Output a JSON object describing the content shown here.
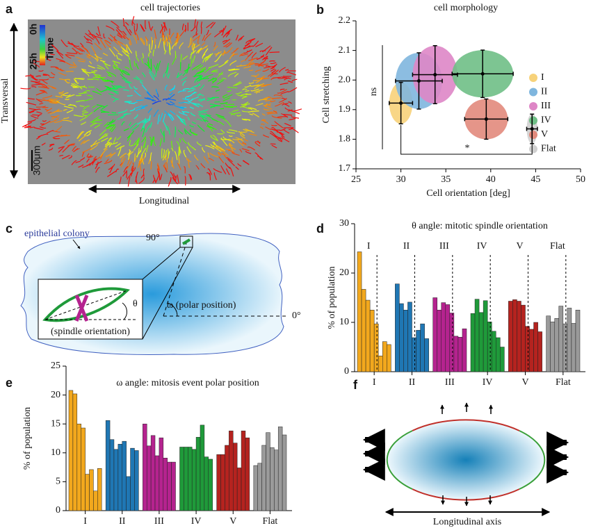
{
  "panel_a": {
    "panel": "a",
    "title": "cell trajectories",
    "y_label": "Transversal",
    "x_label": "Longitudinal",
    "colorbar_start": "0h",
    "colorbar_label": "Time",
    "colorbar_end": "25h",
    "scale_bar": "300μm"
  },
  "panel_c": {
    "panel": "c",
    "colony": "epithelial colony",
    "angle_90": "90°",
    "angle_0": "0°",
    "theta": "θ",
    "omega": "ω (polar position)",
    "spindle": "(spindle orientation)"
  },
  "panel_f": {
    "panel": "f",
    "axis_label": "Longitudinal axis"
  },
  "chart_data": [
    {
      "type": "scatter",
      "panel": "b",
      "title": "cell morphology",
      "x_label": "Cell orientation [deg]",
      "y_label": "Cell stretching",
      "xlim": [
        25,
        50
      ],
      "xticks": [
        25,
        30,
        35,
        40,
        45,
        50
      ],
      "ylim": [
        1.7,
        2.2
      ],
      "yticks": [
        1.7,
        1.8,
        1.9,
        {
          "value": 2,
          "label": "2.0"
        },
        2.1,
        2.2
      ],
      "annotations": [
        "ns",
        "*"
      ],
      "series": [
        {
          "name": "I",
          "color": "#f7d27a",
          "x": [
            30
          ],
          "y": [
            1.922
          ],
          "xerr": [
            1.3
          ],
          "yerr": [
            0.07
          ]
        },
        {
          "name": "II",
          "color": "#7fb6de",
          "x": [
            32
          ],
          "y": [
            1.997
          ],
          "xerr": [
            2.6
          ],
          "yerr": [
            0.095
          ]
        },
        {
          "name": "III",
          "color": "#de86c6",
          "x": [
            33.8
          ],
          "y": [
            2.018
          ],
          "xerr": [
            2.5
          ],
          "yerr": [
            0.098
          ]
        },
        {
          "name": "IV",
          "color": "#6fbf86",
          "x": [
            39.1
          ],
          "y": [
            2.021
          ],
          "xerr": [
            3.4
          ],
          "yerr": [
            0.08
          ]
        },
        {
          "name": "V",
          "color": "#e28a7c",
          "x": [
            39.5
          ],
          "y": [
            1.868
          ],
          "xerr": [
            2.4
          ],
          "yerr": [
            0.068
          ]
        },
        {
          "name": "Flat",
          "color": "#d0d0d0",
          "x": [
            44.6
          ],
          "y": [
            1.835
          ],
          "xerr": [
            0.6
          ],
          "yerr": [
            0.05
          ]
        }
      ]
    },
    {
      "type": "bar",
      "panel": "d",
      "title": "θ angle: mitotic spindle orientation",
      "y_label": "% of population",
      "ylim": [
        0,
        30
      ],
      "yticks": [
        0,
        10,
        20,
        30
      ],
      "groups": [
        {
          "name": "I",
          "color": "#f2a81d",
          "values": [
            24.3,
            16.7,
            14.5,
            12.5,
            9.7,
            3.2,
            6.1,
            5.5
          ]
        },
        {
          "name": "II",
          "color": "#1f77b4",
          "values": [
            17.8,
            13.8,
            12.5,
            14.1,
            6.9,
            8.4,
            9.7,
            6.7
          ]
        },
        {
          "name": "III",
          "color": "#b5238f",
          "values": [
            15.0,
            12.5,
            14.0,
            13.6,
            11.9,
            7.2,
            7.0,
            8.7
          ]
        },
        {
          "name": "IV",
          "color": "#1f9a3a",
          "values": [
            11.8,
            14.7,
            12.0,
            14.4,
            10.1,
            8.2,
            6.9,
            5.0
          ]
        },
        {
          "name": "V",
          "color": "#b5231f",
          "values": [
            14.3,
            14.6,
            14.3,
            13.5,
            9.2,
            8.6,
            10.0,
            8.1
          ]
        },
        {
          "name": "Flat",
          "color": "#9a9a9a",
          "values": [
            11.3,
            10.1,
            10.8,
            13.3,
            9.7,
            12.9,
            9.8,
            12.5
          ]
        }
      ]
    },
    {
      "type": "bar",
      "panel": "e",
      "title": "ω angle: mitosis event polar position",
      "y_label": "% of population",
      "ylim": [
        0,
        25
      ],
      "yticks": [
        0,
        5,
        10,
        15,
        20,
        25
      ],
      "groups": [
        {
          "name": "I",
          "color": "#f2a81d",
          "values": [
            20.8,
            20.2,
            15.0,
            14.3,
            6.3,
            7.1,
            3.4,
            7.3
          ]
        },
        {
          "name": "II",
          "color": "#1f77b4",
          "values": [
            15.6,
            12.3,
            10.6,
            11.5,
            12.0,
            5.9,
            10.8,
            10.4
          ]
        },
        {
          "name": "III",
          "color": "#b5238f",
          "values": [
            15.0,
            11.2,
            13.0,
            9.5,
            12.6,
            9.1,
            8.4,
            8.4
          ]
        },
        {
          "name": "IV",
          "color": "#1f9a3a",
          "values": [
            11.0,
            11.0,
            11.0,
            10.6,
            12.7,
            14.8,
            9.3,
            8.9
          ]
        },
        {
          "name": "V",
          "color": "#b5231f",
          "values": [
            9.7,
            9.7,
            11.3,
            13.8,
            11.7,
            7.4,
            13.8,
            12.6
          ]
        },
        {
          "name": "Flat",
          "color": "#9a9a9a",
          "values": [
            7.8,
            8.2,
            11.3,
            13.5,
            10.9,
            10.5,
            14.5,
            13.1
          ]
        }
      ]
    }
  ]
}
